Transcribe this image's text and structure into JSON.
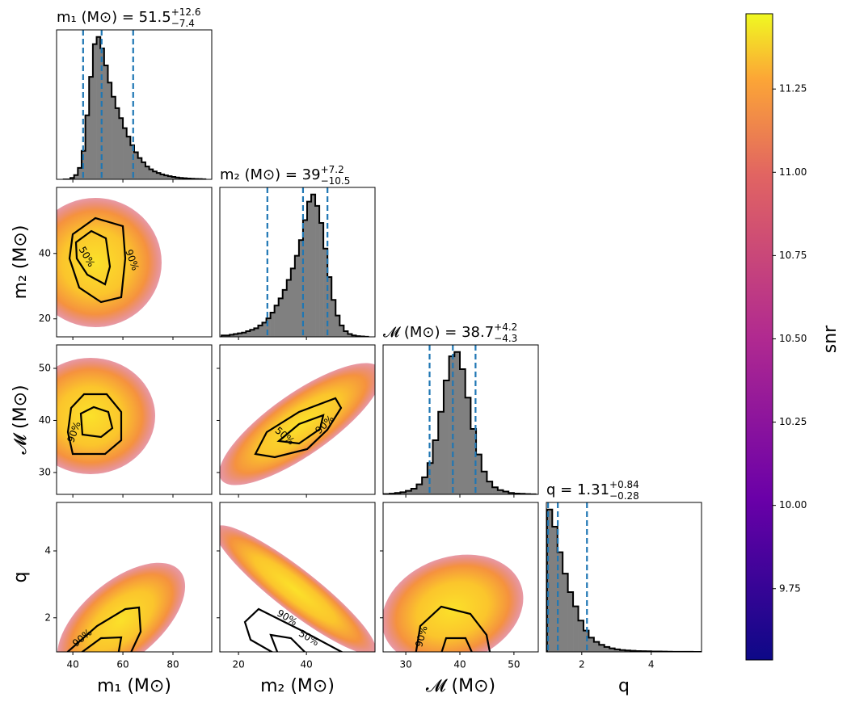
{
  "chart_data": {
    "type": "corner",
    "parameters": [
      {
        "label": "m₁ (M⊙)",
        "title": {
          "main": "m₁ (M⊙) = 51.5",
          "plus": "+12.6",
          "minus": "−7.4"
        },
        "range": [
          33.5,
          95.5
        ],
        "ticks": [
          40,
          60,
          80
        ],
        "quantiles": [
          44.1,
          51.5,
          64.1
        ],
        "hist": {
          "bins": [
            36,
            37.5,
            39,
            40.5,
            42,
            43.5,
            45,
            46.5,
            48,
            49.5,
            51,
            52.5,
            54,
            55.5,
            57,
            58.5,
            60,
            61.5,
            63,
            64.5,
            66,
            67.5,
            69,
            70.5,
            72,
            73.5,
            75,
            76.5,
            78,
            79.5,
            81,
            82.5,
            84,
            85.5,
            87,
            88.5,
            90,
            91.5,
            93
          ],
          "counts": [
            0,
            0,
            1,
            3,
            8,
            20,
            45,
            72,
            95,
            100,
            92,
            80,
            68,
            58,
            50,
            43,
            36,
            30,
            24,
            19,
            15,
            12,
            9,
            7,
            5.5,
            4.5,
            3.5,
            2.8,
            2.2,
            1.7,
            1.3,
            1,
            0.8,
            0.6,
            0.4,
            0.3,
            0.2,
            0.1
          ],
          "ylim": [
            0,
            105
          ]
        }
      },
      {
        "label": "m₂ (M⊙)",
        "title": {
          "main": "m₂ (M⊙) = 39",
          "plus": "+7.2",
          "minus": "−10.5"
        },
        "range": [
          14.5,
          60.2
        ],
        "ticks": [
          20,
          40
        ],
        "quantiles": [
          28.5,
          39,
          46.2
        ],
        "hist": {
          "bins": [
            15,
            16.2,
            17.4,
            18.6,
            19.8,
            21,
            22.2,
            23.4,
            24.6,
            25.8,
            27,
            28.2,
            29.4,
            30.6,
            31.8,
            33,
            34.2,
            35.4,
            36.6,
            37.8,
            39,
            40.2,
            41.4,
            42.6,
            43.8,
            45,
            46.2,
            47.4,
            48.6,
            49.8,
            51,
            52.2,
            53.4,
            54.6,
            55.8,
            57,
            58.2
          ],
          "counts": [
            1,
            1,
            1.5,
            2,
            2.5,
            3,
            4,
            5,
            6,
            8,
            10,
            13,
            17,
            22,
            27,
            33,
            40,
            48,
            57,
            68,
            82,
            95,
            100,
            92,
            80,
            62,
            42,
            26,
            15,
            8,
            4,
            2,
            1,
            0.5,
            0.3,
            0.1
          ],
          "ylim": [
            0,
            105
          ]
        }
      },
      {
        "label": "𝓜 (M⊙)",
        "title": {
          "main": "𝓜 (M⊙) = 38.7",
          "plus": "+4.2",
          "minus": "−4.3"
        },
        "range": [
          25.8,
          54.5
        ],
        "ticks": [
          30,
          40,
          50
        ],
        "quantiles": [
          34.4,
          38.7,
          42.9
        ],
        "hist": {
          "bins": [
            26,
            27,
            28,
            29,
            30,
            31,
            32,
            33,
            34,
            35,
            36,
            37,
            38,
            39,
            40,
            41,
            42,
            43,
            44,
            45,
            46,
            47,
            48,
            49,
            50,
            51,
            52,
            53,
            54
          ],
          "counts": [
            0.2,
            0.5,
            1,
            1.5,
            2.5,
            4,
            7,
            12,
            22,
            38,
            58,
            80,
            97,
            100,
            88,
            68,
            46,
            28,
            16,
            9,
            5,
            3,
            2,
            1,
            0.6,
            0.4,
            0.2,
            0.1
          ],
          "ylim": [
            0,
            105
          ]
        }
      },
      {
        "label": "q",
        "title": {
          "main": "q = 1.31",
          "plus": "+0.84",
          "minus": "−0.28"
        },
        "range": [
          0.98,
          5.45
        ],
        "ticks": [
          2,
          4
        ],
        "quantiles": [
          1.03,
          1.31,
          2.15
        ],
        "hist": {
          "bins": [
            1,
            1.15,
            1.3,
            1.45,
            1.6,
            1.75,
            1.9,
            2.05,
            2.2,
            2.35,
            2.5,
            2.65,
            2.8,
            2.95,
            3.1,
            3.25,
            3.4,
            3.55,
            3.7,
            3.85,
            4,
            4.15,
            4.3,
            4.45,
            4.6,
            4.75,
            4.9,
            5.05,
            5.2,
            5.35,
            5.5
          ],
          "counts": [
            100,
            88,
            70,
            55,
            42,
            32,
            22,
            15,
            10,
            7,
            5,
            3.5,
            2.5,
            1.8,
            1.3,
            1,
            0.8,
            0.6,
            0.5,
            0.4,
            0.3,
            0.25,
            0.2,
            0.15,
            0.1,
            0.1,
            0.05,
            0.05,
            0.03,
            0.02
          ],
          "ylim": [
            0,
            105
          ]
        }
      }
    ],
    "contour_labels": [
      "50%",
      "90%"
    ],
    "quantile_color": "#1f77b4",
    "hist_color": "#808080",
    "colorbar": {
      "label": "snr",
      "lim": [
        9.536,
        11.476
      ],
      "colormap": "plasma",
      "ticks": [
        11.25,
        {
          "value": 11,
          "label": "11.00"
        },
        10.75,
        {
          "value": 10.5,
          "label": "10.50"
        },
        10.25,
        {
          "value": 10,
          "label": "10.00"
        },
        9.75
      ]
    }
  }
}
